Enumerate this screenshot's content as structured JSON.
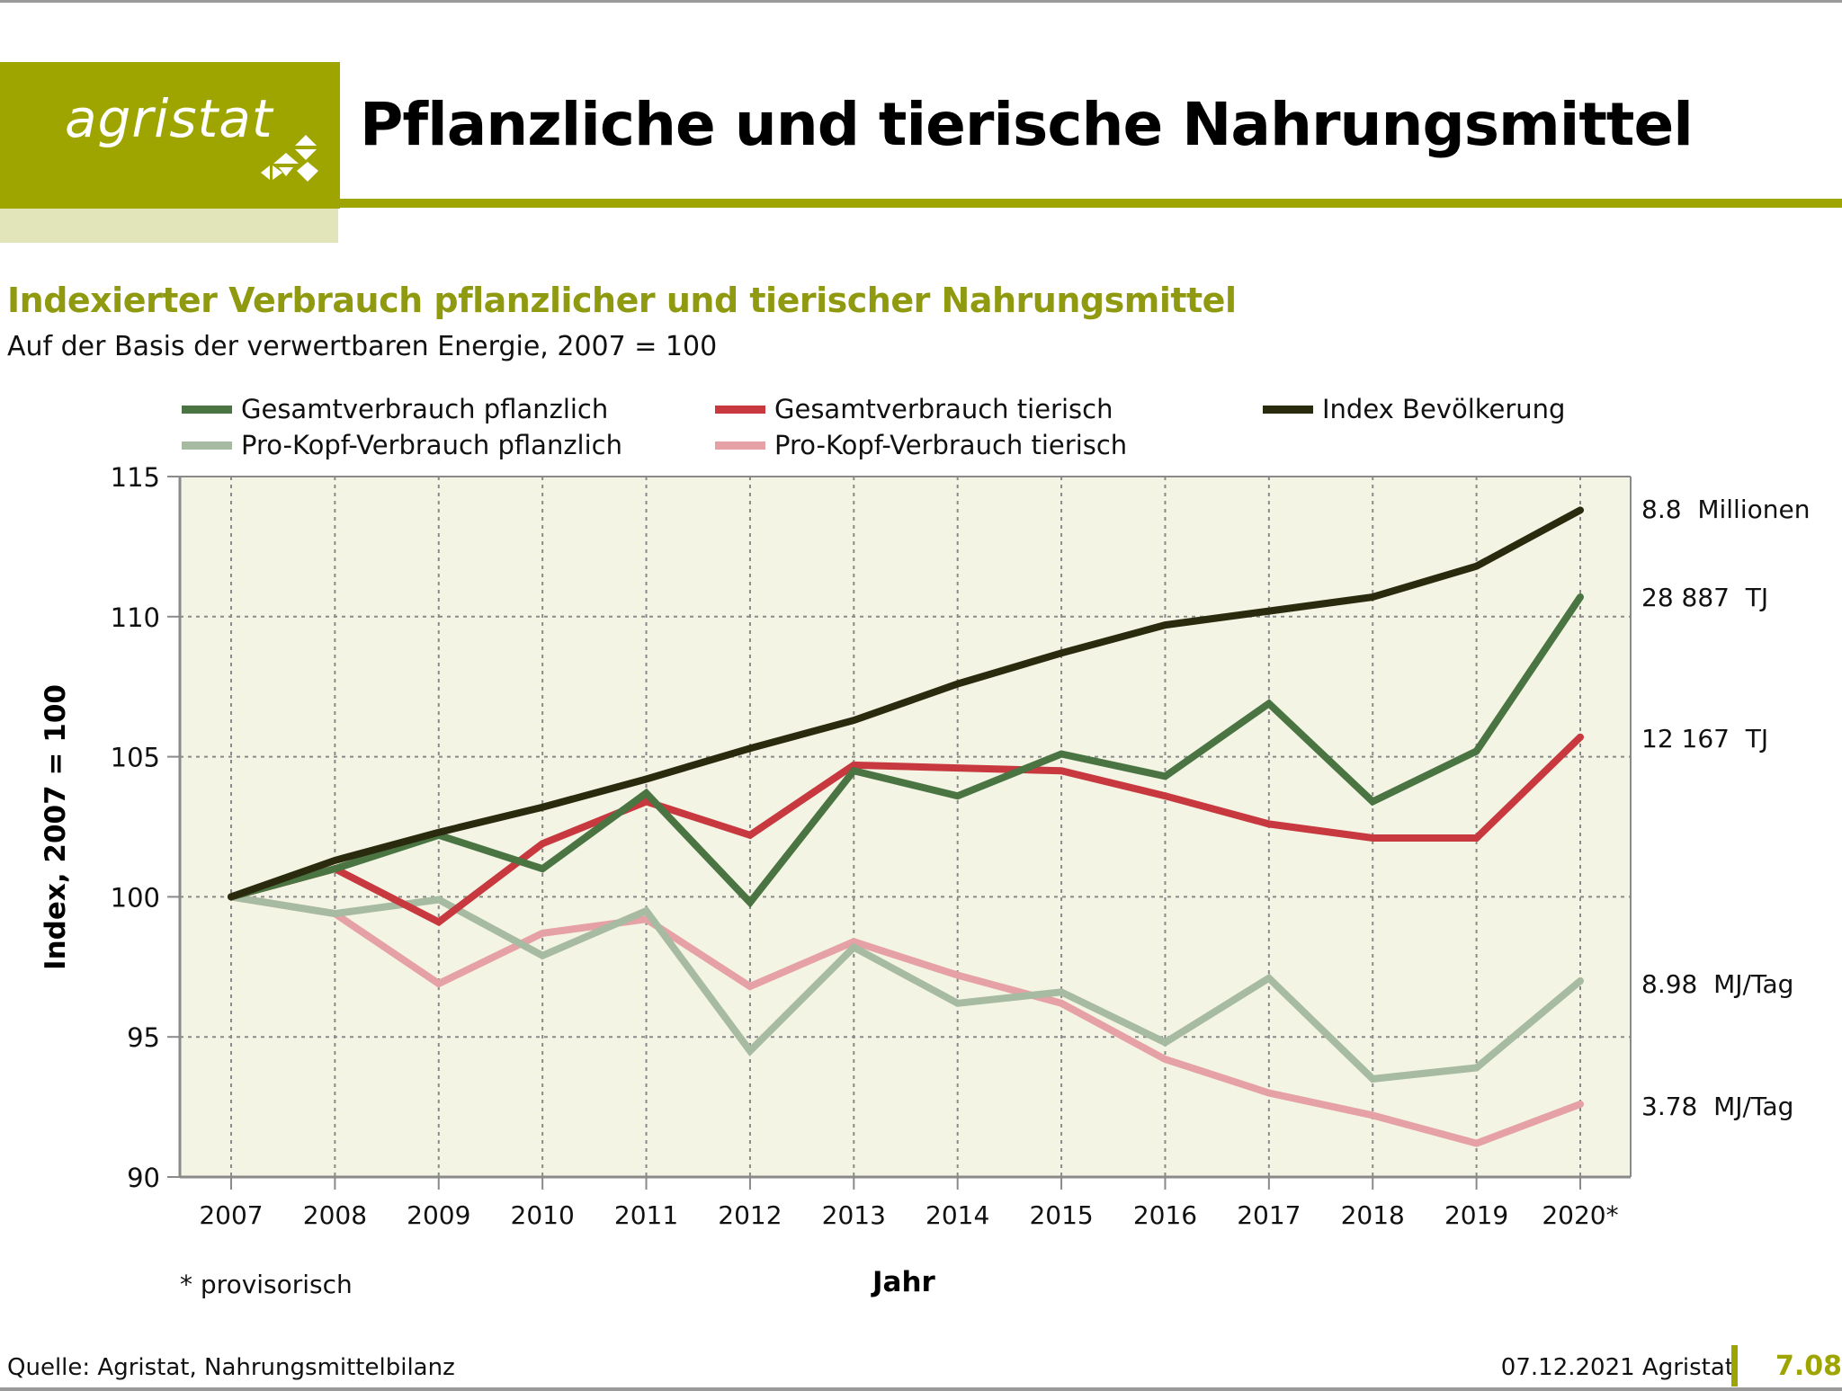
{
  "header": {
    "logo_text": "agristat",
    "title": "Pflanzliche und tierische Nahrungsmittel",
    "brand_color": "#9fa500"
  },
  "chart_header": {
    "title": "Indexierter Verbrauch pflanzlicher und tierischer Nahrungsmittel",
    "subtitle": "Auf der Basis der verwertbaren Energie, 2007 = 100"
  },
  "chart_data": {
    "type": "line",
    "title": "Indexierter Verbrauch pflanzlicher und tierischer Nahrungsmittel",
    "subtitle": "Auf der Basis der verwertbaren Energie, 2007 = 100",
    "xlabel": "Jahr",
    "ylabel": "Index, 2007 = 100",
    "ylim": [
      90,
      115
    ],
    "yticks": [
      "90",
      "95",
      "100",
      "105",
      "110",
      "115"
    ],
    "ytick_values": [
      90,
      95,
      100,
      105,
      110,
      115
    ],
    "x": [
      2007,
      2008,
      2009,
      2010,
      2011,
      2012,
      2013,
      2014,
      2015,
      2016,
      2017,
      2018,
      2019,
      2020
    ],
    "xtick_labels": [
      "2007",
      "2008",
      "2009",
      "2010",
      "2011",
      "2012",
      "2013",
      "2014",
      "2015",
      "2016",
      "2017",
      "2018",
      "2019",
      "2020*"
    ],
    "grid": true,
    "legend_placement": "top",
    "series": [
      {
        "name": "Gesamtverbrauch pflanzlich",
        "color": "#4a7542",
        "values": [
          100,
          101.0,
          102.2,
          101.0,
          103.7,
          99.8,
          104.5,
          103.6,
          105.1,
          104.3,
          106.9,
          103.4,
          105.2,
          110.7
        ],
        "end_label": "28 887  TJ"
      },
      {
        "name": "Gesamtverbrauch tierisch",
        "color": "#c8383f",
        "values": [
          100,
          101.0,
          99.1,
          101.9,
          103.4,
          102.2,
          104.7,
          104.6,
          104.5,
          103.6,
          102.6,
          102.1,
          102.1,
          105.7
        ],
        "end_label": "12 167  TJ"
      },
      {
        "name": "Index Bevölkerung",
        "color": "#2a2a0e",
        "values": [
          100,
          101.3,
          102.3,
          103.2,
          104.2,
          105.3,
          106.3,
          107.6,
          108.7,
          109.7,
          110.2,
          110.7,
          111.8,
          113.8
        ],
        "end_label": "8.8  Millionen"
      },
      {
        "name": "Pro-Kopf-Verbrauch pflanzlich",
        "color": "#a6bba1",
        "values": [
          100,
          99.4,
          99.9,
          97.9,
          99.5,
          94.5,
          98.2,
          96.2,
          96.6,
          94.8,
          97.1,
          93.5,
          93.9,
          97.0
        ],
        "end_label": "8.98  MJ/Tag"
      },
      {
        "name": "Pro-Kopf-Verbrauch tierisch",
        "color": "#e5a1a6",
        "values": [
          100,
          99.4,
          96.9,
          98.7,
          99.2,
          96.8,
          98.4,
          97.2,
          96.2,
          94.2,
          93.0,
          92.2,
          91.2,
          92.6
        ],
        "end_label": "3.78  MJ/Tag"
      }
    ],
    "footnote": "* provisorisch",
    "plot_bg": "#f4f4e4"
  },
  "footer": {
    "source": "Quelle: Agristat, Nahrungsmittelbilanz",
    "date": "07.12.2021 Agristat",
    "page": "7.08"
  }
}
